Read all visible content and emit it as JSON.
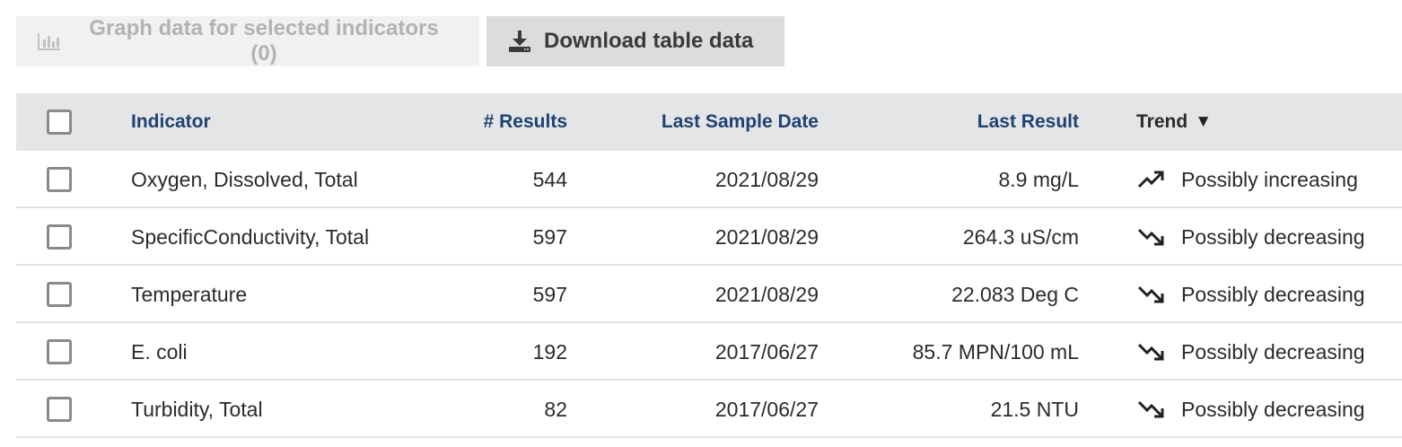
{
  "toolbar": {
    "graph_label": "Graph data for selected indicators (0)",
    "graph_icon": "bar-chart-icon",
    "download_label": "Download table data",
    "download_icon": "download-icon"
  },
  "table": {
    "headers": {
      "indicator": "Indicator",
      "results": "# Results",
      "last_sample_date": "Last Sample Date",
      "last_result": "Last Result",
      "trend": "Trend",
      "sort_indicator": "▼"
    },
    "rows": [
      {
        "indicator": "Oxygen, Dissolved, Total",
        "results": "544",
        "date": "2021/08/29",
        "last_result": "8.9 mg/L",
        "trend": "Possibly increasing",
        "trend_icon": "trend-up-icon"
      },
      {
        "indicator": "SpecificConductivity, Total",
        "results": "597",
        "date": "2021/08/29",
        "last_result": "264.3 uS/cm",
        "trend": "Possibly decreasing",
        "trend_icon": "trend-down-icon"
      },
      {
        "indicator": "Temperature",
        "results": "597",
        "date": "2021/08/29",
        "last_result": "22.083 Deg C",
        "trend": "Possibly decreasing",
        "trend_icon": "trend-down-icon"
      },
      {
        "indicator": "E. coli",
        "results": "192",
        "date": "2017/06/27",
        "last_result": "85.7 MPN/100 mL",
        "trend": "Possibly decreasing",
        "trend_icon": "trend-down-icon"
      },
      {
        "indicator": "Turbidity, Total",
        "results": "82",
        "date": "2017/06/27",
        "last_result": "21.5 NTU",
        "trend": "Possibly decreasing",
        "trend_icon": "trend-down-icon"
      }
    ]
  },
  "colors": {
    "header_bg": "#e4e5e7",
    "header_text": "#1e4370",
    "disabled_button_bg": "#f1f1f1",
    "button_bg": "#dcdcdc"
  }
}
